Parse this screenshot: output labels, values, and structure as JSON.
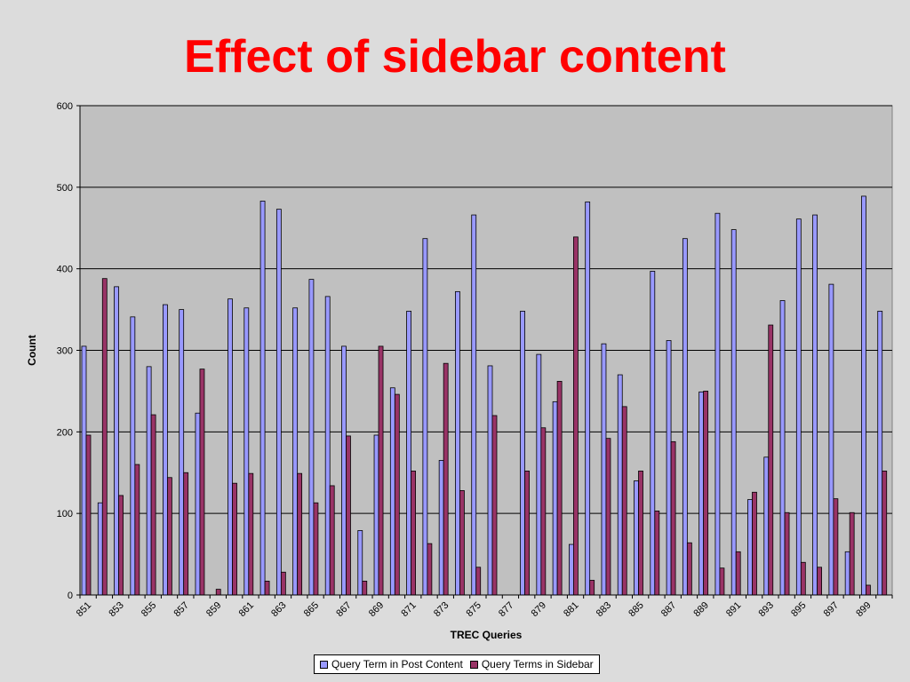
{
  "chart_data": {
    "type": "bar",
    "title": "Effect of sidebar content",
    "xlabel": "TREC Queries",
    "ylabel": "Count",
    "ylim": [
      0,
      600
    ],
    "yticks": [
      0,
      100,
      200,
      300,
      400,
      500,
      600
    ],
    "grid": true,
    "legend_position": "bottom",
    "categories": [
      "851",
      "852",
      "853",
      "854",
      "855",
      "856",
      "857",
      "858",
      "859",
      "860",
      "861",
      "862",
      "863",
      "864",
      "865",
      "866",
      "867",
      "868",
      "869",
      "870",
      "871",
      "872",
      "873",
      "874",
      "875",
      "876",
      "877",
      "878",
      "879",
      "880",
      "881",
      "882",
      "883",
      "884",
      "885",
      "886",
      "887",
      "888",
      "889",
      "890",
      "891",
      "892",
      "893",
      "894",
      "895",
      "896",
      "897",
      "898",
      "899",
      "900"
    ],
    "tick_labels": [
      "851",
      "853",
      "855",
      "857",
      "859",
      "861",
      "863",
      "865",
      "867",
      "869",
      "871",
      "873",
      "875",
      "877",
      "879",
      "881",
      "883",
      "885",
      "887",
      "889",
      "891",
      "893",
      "895",
      "897",
      "899"
    ],
    "series": [
      {
        "name": "Query Term in Post Content",
        "color": "#9999ff",
        "values": [
          305,
          113,
          378,
          341,
          280,
          356,
          350,
          223,
          0,
          363,
          352,
          483,
          473,
          352,
          387,
          366,
          305,
          79,
          196,
          254,
          348,
          437,
          165,
          372,
          466,
          281,
          0,
          348,
          295,
          237,
          62,
          482,
          308,
          270,
          140,
          397,
          312,
          437,
          249,
          468,
          448,
          117,
          169,
          361,
          461,
          466,
          381,
          53,
          489,
          348
        ]
      },
      {
        "name": "Query Terms in Sidebar",
        "color": "#993366",
        "values": [
          196,
          388,
          122,
          160,
          221,
          144,
          150,
          277,
          7,
          137,
          149,
          17,
          28,
          149,
          113,
          134,
          195,
          17,
          305,
          246,
          152,
          63,
          284,
          128,
          34,
          220,
          0,
          152,
          205,
          262,
          439,
          18,
          192,
          231,
          152,
          103,
          188,
          64,
          250,
          33,
          53,
          126,
          331,
          101,
          40,
          34,
          118,
          101,
          12,
          152
        ]
      }
    ]
  }
}
